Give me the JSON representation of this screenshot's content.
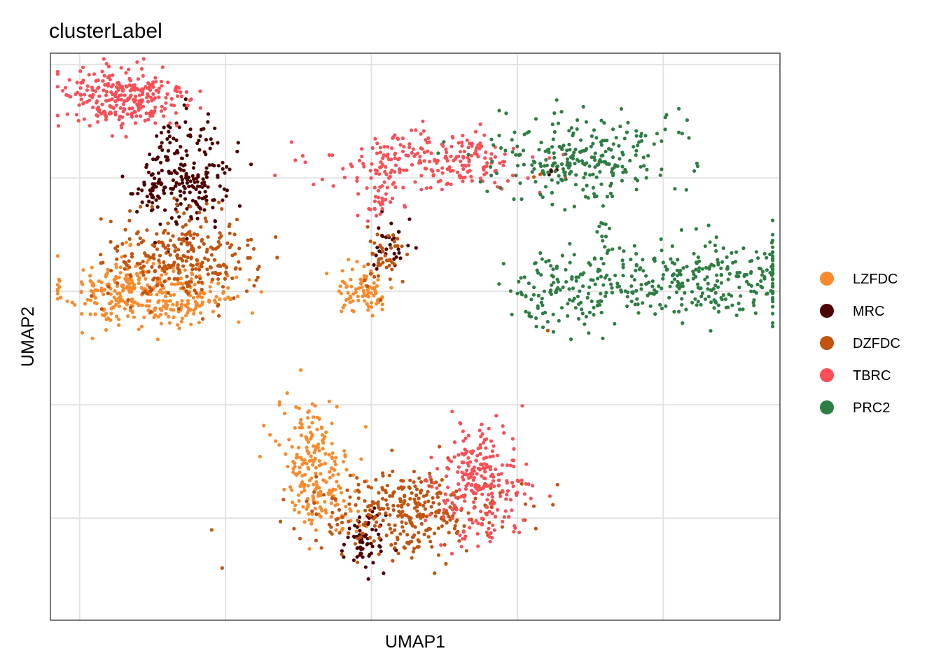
{
  "chart_data": {
    "type": "scatter",
    "title": "clusterLabel",
    "xlabel": "UMAP1",
    "ylabel": "UMAP2",
    "xlim": [
      0,
      100
    ],
    "ylim": [
      0,
      100
    ],
    "x_ticks": [
      4,
      24,
      44,
      64,
      84,
      104
    ],
    "y_ticks": [
      18,
      38,
      58,
      78,
      98
    ],
    "tick_labels_visible": false,
    "grid": true,
    "legend_position": "right",
    "series": [
      {
        "name": "LZFDC",
        "color": "#F88B2D",
        "clusters": [
          {
            "cx": 11,
            "cy": 58,
            "sx": 4.5,
            "sy": 3.2,
            "n": 260
          },
          {
            "cx": 20,
            "cy": 57,
            "sx": 3.5,
            "sy": 2.8,
            "n": 90
          },
          {
            "cx": 43,
            "cy": 58,
            "sx": 2.0,
            "sy": 2.0,
            "n": 85
          },
          {
            "cx": 36,
            "cy": 29,
            "sx": 2.5,
            "sy": 5.0,
            "n": 170
          },
          {
            "cx": 38,
            "cy": 20,
            "sx": 2.5,
            "sy": 2.2,
            "n": 60
          }
        ]
      },
      {
        "name": "MRC",
        "color": "#4E0000",
        "clusters": [
          {
            "cx": 19,
            "cy": 79,
            "sx": 3.0,
            "sy": 5.0,
            "n": 200
          },
          {
            "cx": 14,
            "cy": 76,
            "sx": 2.0,
            "sy": 2.0,
            "n": 40
          },
          {
            "cx": 47,
            "cy": 66,
            "sx": 1.2,
            "sy": 2.5,
            "n": 30
          },
          {
            "cx": 43,
            "cy": 14,
            "sx": 1.5,
            "sy": 2.5,
            "n": 70
          },
          {
            "cx": 69,
            "cy": 79,
            "sx": 0.5,
            "sy": 0.5,
            "n": 4
          }
        ]
      },
      {
        "name": "DZFDC",
        "color": "#C2540F",
        "clusters": [
          {
            "cx": 18,
            "cy": 64,
            "sx": 5.0,
            "sy": 4.0,
            "n": 280
          },
          {
            "cx": 46,
            "cy": 64,
            "sx": 1.5,
            "sy": 2.5,
            "n": 45
          },
          {
            "cx": 49,
            "cy": 19,
            "sx": 6.5,
            "sy": 3.5,
            "n": 320
          },
          {
            "cx": 67,
            "cy": 78,
            "sx": 0.6,
            "sy": 0.6,
            "n": 3
          },
          {
            "cx": 68,
            "cy": 51,
            "sx": 0.3,
            "sy": 0.3,
            "n": 1
          }
        ]
      },
      {
        "name": "TBRC",
        "color": "#F94F57",
        "clusters": [
          {
            "cx": 10,
            "cy": 92,
            "sx": 4.5,
            "sy": 3.0,
            "n": 270
          },
          {
            "cx": 52,
            "cy": 81,
            "sx": 7.0,
            "sy": 2.5,
            "n": 230
          },
          {
            "cx": 45,
            "cy": 75,
            "sx": 1.5,
            "sy": 3.0,
            "n": 40
          },
          {
            "cx": 59,
            "cy": 24,
            "sx": 3.0,
            "sy": 5.0,
            "n": 250
          }
        ]
      },
      {
        "name": "PRC2",
        "color": "#2E7D43",
        "clusters": [
          {
            "cx": 73,
            "cy": 82,
            "sx": 6.0,
            "sy": 4.0,
            "n": 260
          },
          {
            "cx": 76,
            "cy": 67,
            "sx": 0.5,
            "sy": 2.5,
            "n": 15
          },
          {
            "cx": 89,
            "cy": 60,
            "sx": 8.0,
            "sy": 3.5,
            "n": 300
          },
          {
            "cx": 70,
            "cy": 58,
            "sx": 4.0,
            "sy": 3.5,
            "n": 120
          }
        ]
      }
    ]
  }
}
